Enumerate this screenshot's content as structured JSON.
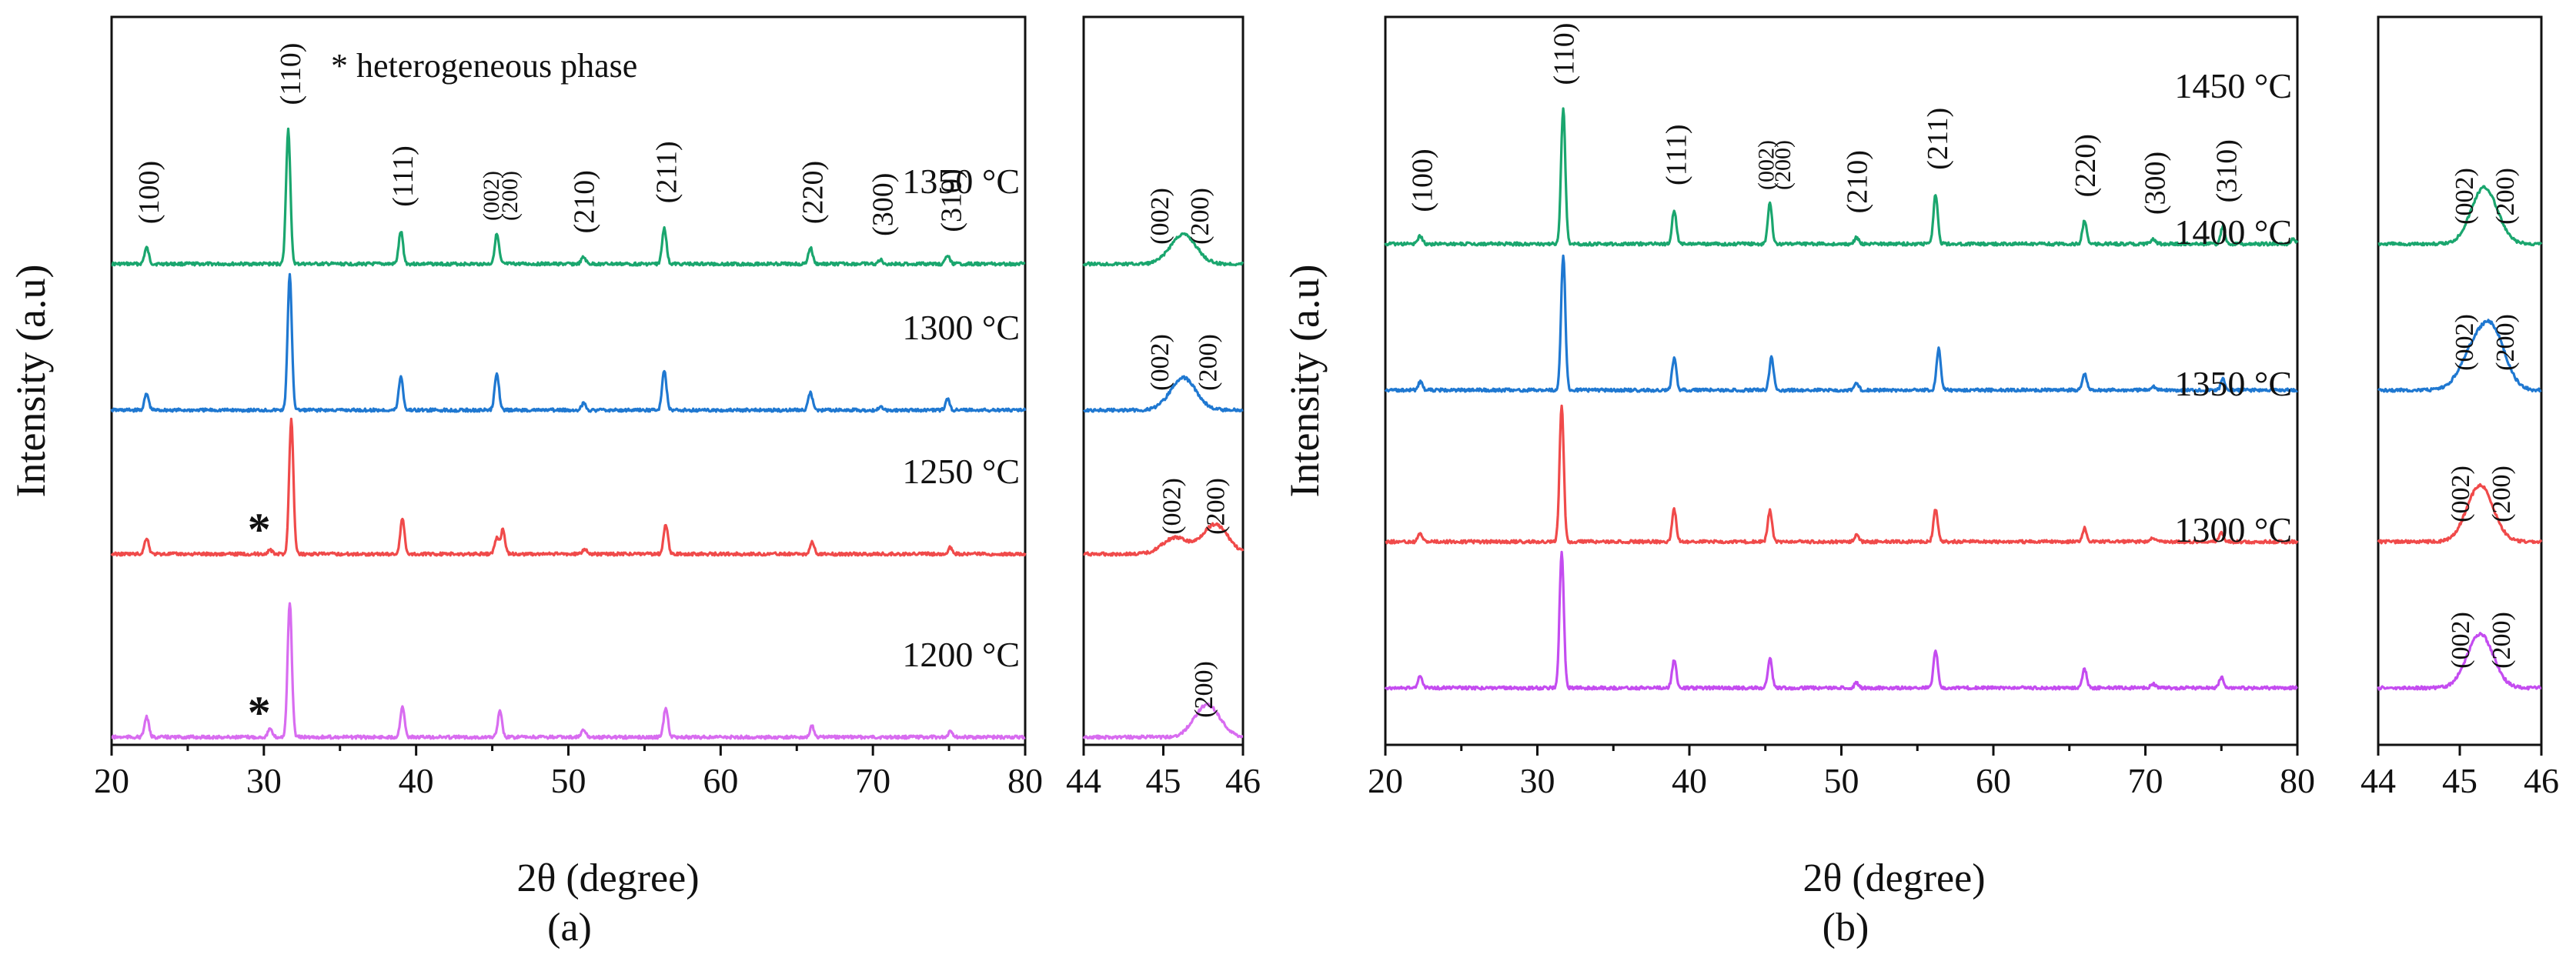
{
  "chart_data": [
    {
      "id": "a",
      "type": "line",
      "title": "",
      "caption": "(a)",
      "xlabel": "2θ (degree)",
      "ylabel": "Intensity (a.u)",
      "legend_note": "* heterogeneous phase",
      "xlim": [
        20,
        80
      ],
      "xticks": [
        "20",
        "30",
        "40",
        "50",
        "60",
        "70",
        "80"
      ],
      "zoom_xlim": [
        44,
        46
      ],
      "zoom_xticks": [
        "44",
        "45",
        "46"
      ],
      "peak_labels": [
        {
          "text": "(100)",
          "x": 22.4,
          "size": "lg"
        },
        {
          "text": "(110)",
          "x": 31.7,
          "size": "lg"
        },
        {
          "text": "(111)",
          "x": 39.1,
          "size": "lg"
        },
        {
          "text": "(002)",
          "x": 44.9,
          "size": "sm"
        },
        {
          "text": "(200)",
          "x": 46.1,
          "size": "sm"
        },
        {
          "text": "(210)",
          "x": 51.0,
          "size": "lg"
        },
        {
          "text": "(211)",
          "x": 56.4,
          "size": "lg"
        },
        {
          "text": "(220)",
          "x": 66.0,
          "size": "lg"
        },
        {
          "text": "(300)",
          "x": 70.6,
          "size": "lg"
        },
        {
          "text": "(310)",
          "x": 75.1,
          "size": "lg"
        }
      ],
      "series": [
        {
          "name": "1350 °C",
          "color": "#1aa66e",
          "peaks": [
            {
              "x": 22.3,
              "h": 0.12
            },
            {
              "x": 31.6,
              "h": 1.0
            },
            {
              "x": 39.0,
              "h": 0.24
            },
            {
              "x": 45.3,
              "h": 0.22
            },
            {
              "x": 51.0,
              "h": 0.05
            },
            {
              "x": 56.3,
              "h": 0.27
            },
            {
              "x": 65.9,
              "h": 0.12
            },
            {
              "x": 70.5,
              "h": 0.03
            },
            {
              "x": 74.9,
              "h": 0.06
            }
          ],
          "zoom_peaks": [
            {
              "x": 45.25,
              "h": 0.22
            }
          ],
          "zoom_labels": [
            {
              "text": "(002)",
              "x": 44.95
            },
            {
              "text": "(200)",
              "x": 45.45
            }
          ],
          "markers": []
        },
        {
          "name": "1300 °C",
          "color": "#1f78d1",
          "peaks": [
            {
              "x": 22.3,
              "h": 0.12
            },
            {
              "x": 31.7,
              "h": 1.0
            },
            {
              "x": 39.0,
              "h": 0.25
            },
            {
              "x": 45.3,
              "h": 0.28
            },
            {
              "x": 51.0,
              "h": 0.05
            },
            {
              "x": 56.3,
              "h": 0.3
            },
            {
              "x": 65.9,
              "h": 0.13
            },
            {
              "x": 70.5,
              "h": 0.03
            },
            {
              "x": 74.9,
              "h": 0.08
            }
          ],
          "zoom_peaks": [
            {
              "x": 45.25,
              "h": 0.24
            }
          ],
          "zoom_labels": [
            {
              "text": "(002)",
              "x": 44.95
            },
            {
              "text": "(200)",
              "x": 45.55
            }
          ],
          "markers": []
        },
        {
          "name": "1250 °C",
          "color": "#f04a4a",
          "peaks": [
            {
              "x": 22.3,
              "h": 0.12
            },
            {
              "x": 30.4,
              "h": 0.03
            },
            {
              "x": 31.8,
              "h": 1.0
            },
            {
              "x": 39.1,
              "h": 0.26
            },
            {
              "x": 45.3,
              "h": 0.12
            },
            {
              "x": 45.7,
              "h": 0.18
            },
            {
              "x": 51.1,
              "h": 0.04
            },
            {
              "x": 56.4,
              "h": 0.22
            },
            {
              "x": 66.0,
              "h": 0.09
            },
            {
              "x": 75.1,
              "h": 0.05
            }
          ],
          "zoom_peaks": [
            {
              "x": 45.15,
              "h": 0.12
            },
            {
              "x": 45.65,
              "h": 0.22
            }
          ],
          "zoom_labels": [
            {
              "text": "(002)",
              "x": 45.1
            },
            {
              "text": "(200)",
              "x": 45.65
            }
          ],
          "markers": [
            {
              "text": "*",
              "x": 30.4
            }
          ]
        },
        {
          "name": "1200 °C",
          "color": "#d86cf0",
          "peaks": [
            {
              "x": 22.3,
              "h": 0.15
            },
            {
              "x": 30.4,
              "h": 0.06
            },
            {
              "x": 31.7,
              "h": 1.0
            },
            {
              "x": 39.1,
              "h": 0.23
            },
            {
              "x": 45.5,
              "h": 0.19
            },
            {
              "x": 51.0,
              "h": 0.05
            },
            {
              "x": 56.4,
              "h": 0.22
            },
            {
              "x": 66.0,
              "h": 0.08
            },
            {
              "x": 75.1,
              "h": 0.05
            }
          ],
          "zoom_peaks": [
            {
              "x": 45.55,
              "h": 0.24
            }
          ],
          "zoom_labels": [
            {
              "text": "(200)",
              "x": 45.5
            }
          ],
          "markers": [
            {
              "text": "*",
              "x": 30.4
            }
          ]
        }
      ]
    },
    {
      "id": "b",
      "type": "line",
      "title": "",
      "caption": "(b)",
      "xlabel": "2θ (degree)",
      "ylabel": "Intensity (a.u)",
      "legend_note": "",
      "xlim": [
        20,
        80
      ],
      "xticks": [
        "20",
        "30",
        "40",
        "50",
        "60",
        "70",
        "80"
      ],
      "zoom_xlim": [
        44,
        46
      ],
      "zoom_xticks": [
        "44",
        "45",
        "46"
      ],
      "peak_labels": [
        {
          "text": "(100)",
          "x": 22.4,
          "size": "lg"
        },
        {
          "text": "(110)",
          "x": 31.7,
          "size": "lg"
        },
        {
          "text": "(111)",
          "x": 39.1,
          "size": "lg"
        },
        {
          "text": "(002)",
          "x": 45.0,
          "size": "sm"
        },
        {
          "text": "(200)",
          "x": 46.1,
          "size": "sm"
        },
        {
          "text": "(210)",
          "x": 51.0,
          "size": "lg"
        },
        {
          "text": "(211)",
          "x": 56.3,
          "size": "lg"
        },
        {
          "text": "(220)",
          "x": 66.0,
          "size": "lg"
        },
        {
          "text": "(300)",
          "x": 70.6,
          "size": "lg"
        },
        {
          "text": "(310)",
          "x": 75.3,
          "size": "lg"
        }
      ],
      "series": [
        {
          "name": "1450 °C",
          "color": "#1aa66e",
          "peaks": [
            {
              "x": 22.3,
              "h": 0.06
            },
            {
              "x": 31.7,
              "h": 1.0
            },
            {
              "x": 39.0,
              "h": 0.25
            },
            {
              "x": 45.3,
              "h": 0.3
            },
            {
              "x": 51.0,
              "h": 0.05
            },
            {
              "x": 56.2,
              "h": 0.37
            },
            {
              "x": 66.0,
              "h": 0.17
            },
            {
              "x": 70.5,
              "h": 0.04
            },
            {
              "x": 75.1,
              "h": 0.13
            },
            {
              "x": 79.7,
              "h": 0.04
            }
          ],
          "zoom_peaks": [
            {
              "x": 45.3,
              "h": 0.42
            }
          ],
          "zoom_labels": [
            {
              "text": "(002)",
              "x": 45.05
            },
            {
              "text": "(200)",
              "x": 45.55
            }
          ],
          "markers": []
        },
        {
          "name": "1400 °C",
          "color": "#1f78d1",
          "peaks": [
            {
              "x": 22.3,
              "h": 0.06
            },
            {
              "x": 31.7,
              "h": 1.0
            },
            {
              "x": 39.0,
              "h": 0.24
            },
            {
              "x": 45.4,
              "h": 0.24
            },
            {
              "x": 51.0,
              "h": 0.05
            },
            {
              "x": 56.4,
              "h": 0.31
            },
            {
              "x": 66.0,
              "h": 0.12
            },
            {
              "x": 70.5,
              "h": 0.03
            },
            {
              "x": 75.1,
              "h": 0.08
            }
          ],
          "zoom_peaks": [
            {
              "x": 45.15,
              "h": 0.24
            },
            {
              "x": 45.4,
              "h": 0.42
            }
          ],
          "zoom_labels": [
            {
              "text": "(002)",
              "x": 45.05
            },
            {
              "text": "(200)",
              "x": 45.55
            }
          ],
          "markers": []
        },
        {
          "name": "1350 °C",
          "color": "#f04a4a",
          "peaks": [
            {
              "x": 22.3,
              "h": 0.06
            },
            {
              "x": 31.6,
              "h": 1.0
            },
            {
              "x": 39.0,
              "h": 0.24
            },
            {
              "x": 45.3,
              "h": 0.23
            },
            {
              "x": 51.0,
              "h": 0.05
            },
            {
              "x": 56.2,
              "h": 0.24
            },
            {
              "x": 66.0,
              "h": 0.1
            },
            {
              "x": 70.5,
              "h": 0.03
            },
            {
              "x": 75.0,
              "h": 0.07
            }
          ],
          "zoom_peaks": [
            {
              "x": 45.25,
              "h": 0.42
            }
          ],
          "zoom_labels": [
            {
              "text": "(002)",
              "x": 45.0
            },
            {
              "text": "(200)",
              "x": 45.5
            }
          ],
          "markers": []
        },
        {
          "name": "1300 °C",
          "color": "#c44cf0",
          "peaks": [
            {
              "x": 22.3,
              "h": 0.09
            },
            {
              "x": 31.6,
              "h": 1.0
            },
            {
              "x": 39.0,
              "h": 0.21
            },
            {
              "x": 45.3,
              "h": 0.22
            },
            {
              "x": 51.0,
              "h": 0.04
            },
            {
              "x": 56.2,
              "h": 0.28
            },
            {
              "x": 66.0,
              "h": 0.14
            },
            {
              "x": 70.5,
              "h": 0.03
            },
            {
              "x": 75.0,
              "h": 0.08
            }
          ],
          "zoom_peaks": [
            {
              "x": 45.25,
              "h": 0.4
            }
          ],
          "zoom_labels": [
            {
              "text": "(002)",
              "x": 45.0
            },
            {
              "text": "(200)",
              "x": 45.5
            }
          ],
          "markers": []
        }
      ]
    }
  ]
}
